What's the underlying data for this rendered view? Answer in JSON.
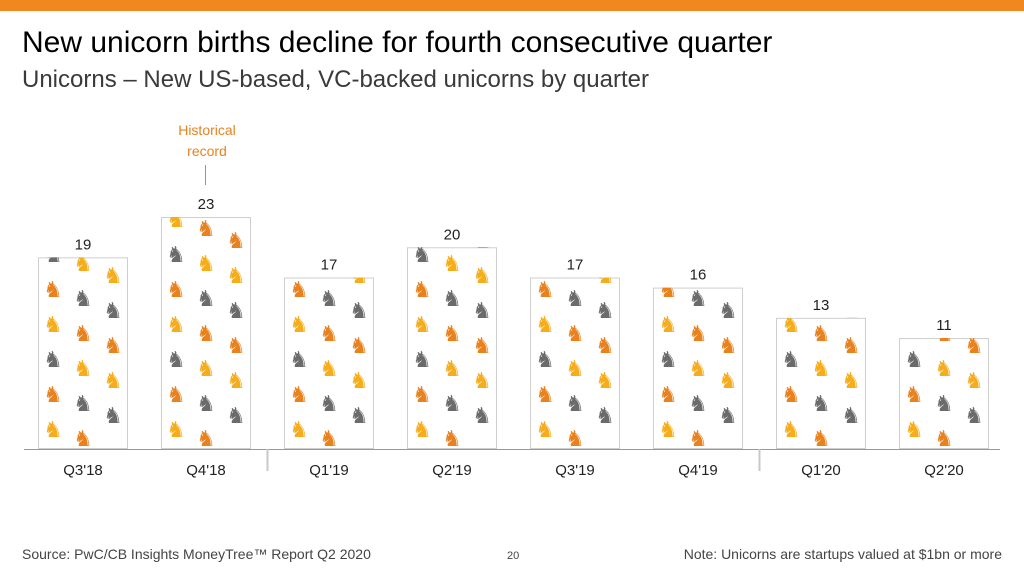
{
  "title": "New unicorn births decline for fourth consecutive quarter",
  "subtitle": "Unicorns – New US-based, VC-backed unicorns by quarter",
  "annotation": {
    "line1": "Historical",
    "line2": "record",
    "category": "Q4'18"
  },
  "footer": {
    "source": "Source: PwC/CB Insights MoneyTree™ Report Q2 2020",
    "page_number": "20",
    "note": "Note: Unicorns are startups valued at $1bn or more"
  },
  "colors": {
    "accent": "#f0871f",
    "annotation": "#e8821e",
    "unicorn_gold": "#f5ad1c",
    "unicorn_orange": "#e8821e",
    "unicorn_gray": "#6b6b6b",
    "bar_border": "#cfcfcf",
    "axis": "#999999"
  },
  "icons": {
    "bar_fill": "unicorn-icon"
  },
  "chart_data": {
    "type": "bar",
    "categories": [
      "Q3'18",
      "Q4'18",
      "Q1'19",
      "Q2'19",
      "Q3'19",
      "Q4'19",
      "Q1'20",
      "Q2'20"
    ],
    "values": [
      19,
      23,
      17,
      20,
      17,
      16,
      13,
      11
    ],
    "title": "New unicorn births decline for fourth consecutive quarter",
    "subtitle": "Unicorns – New US-based, VC-backed unicorns by quarter",
    "xlabel": "",
    "ylabel": "",
    "ylim": [
      0,
      23
    ],
    "grid": false,
    "legend": "none",
    "year_separators_after": [
      "Q4'18",
      "Q4'19"
    ]
  }
}
